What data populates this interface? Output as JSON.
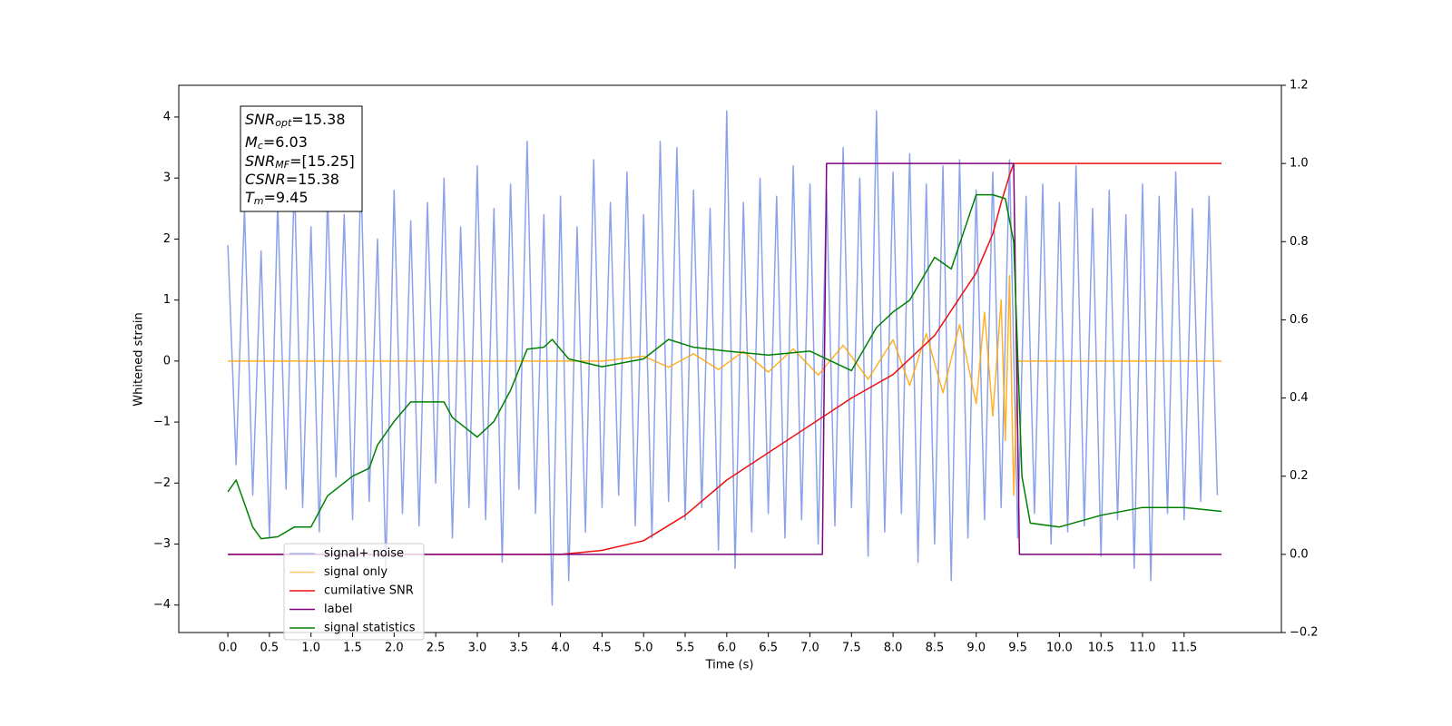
{
  "chart_data": {
    "type": "line",
    "xlabel": "Time (s)",
    "ylabel": "Whitened strain",
    "xlim": [
      -0.59,
      12.67
    ],
    "ylim": [
      -4.45,
      4.52
    ],
    "y2lim": [
      -0.2,
      1.2
    ],
    "xticks": [
      {
        "value": 0,
        "label": "0.0"
      },
      0.5,
      {
        "value": 1,
        "label": "1.0"
      },
      1.5,
      {
        "value": 2,
        "label": "2.0"
      },
      2.5,
      {
        "value": 3,
        "label": "3.0"
      },
      3.5,
      {
        "value": 4,
        "label": "4.0"
      },
      4.5,
      {
        "value": 5,
        "label": "5.0"
      },
      5.5,
      {
        "value": 6,
        "label": "6.0"
      },
      6.5,
      {
        "value": 7,
        "label": "7.0"
      },
      7.5,
      {
        "value": 8,
        "label": "8.0"
      },
      8.5,
      {
        "value": 9,
        "label": "9.0"
      },
      9.5,
      {
        "value": 10,
        "label": "10.0"
      },
      10.5,
      {
        "value": 11,
        "label": "11.0"
      },
      11.5
    ],
    "yticks": [
      {
        "value": -4,
        "label": "−4"
      },
      {
        "value": -3,
        "label": "−3"
      },
      {
        "value": -2,
        "label": "−2"
      },
      {
        "value": -1,
        "label": "−1"
      },
      0,
      1,
      2,
      3,
      4
    ],
    "y2ticks": [
      {
        "value": -0.2,
        "label": "−0.2"
      },
      {
        "value": 0,
        "label": "0.0"
      },
      0.2,
      0.4,
      0.6,
      0.8,
      {
        "value": 1,
        "label": "1.0"
      },
      1.2
    ],
    "legend": "lower left",
    "annotation": [
      {
        "main": "SNR",
        "sub": "opt",
        "rest": "=15.38"
      },
      {
        "main": "M",
        "sub": "c",
        "rest": "=6.03"
      },
      {
        "main": "SNR",
        "sub": "MF",
        "rest": "=[15.25]"
      },
      {
        "main": "CSNR",
        "rest": "=15.38"
      },
      {
        "main": "T",
        "sub": "m",
        "rest": "=9.45"
      }
    ],
    "series": [
      {
        "name": "signal+ noise",
        "color": "#7792e8",
        "axis": "y",
        "x": [
          0,
          0.1,
          0.2,
          0.3,
          0.4,
          0.5,
          0.6,
          0.7,
          0.8,
          0.9,
          1,
          1.1,
          1.2,
          1.3,
          1.4,
          1.5,
          1.6,
          1.7,
          1.8,
          1.9,
          2,
          2.1,
          2.2,
          2.3,
          2.4,
          2.5,
          2.6,
          2.7,
          2.8,
          2.9,
          3,
          3.1,
          3.2,
          3.3,
          3.4,
          3.5,
          3.6,
          3.7,
          3.8,
          3.9,
          4,
          4.1,
          4.2,
          4.3,
          4.4,
          4.5,
          4.6,
          4.7,
          4.8,
          4.9,
          5,
          5.1,
          5.2,
          5.3,
          5.4,
          5.5,
          5.6,
          5.7,
          5.8,
          5.9,
          6,
          6.1,
          6.2,
          6.3,
          6.4,
          6.5,
          6.6,
          6.7,
          6.8,
          6.9,
          7,
          7.1,
          7.2,
          7.3,
          7.4,
          7.5,
          7.6,
          7.7,
          7.8,
          7.9,
          8,
          8.1,
          8.2,
          8.3,
          8.4,
          8.5,
          8.6,
          8.7,
          8.8,
          8.9,
          9,
          9.1,
          9.2,
          9.3,
          9.4,
          9.5,
          9.6,
          9.7,
          9.8,
          9.9,
          10,
          10.1,
          10.2,
          10.3,
          10.4,
          10.5,
          10.6,
          10.7,
          10.8,
          10.9,
          11,
          11.1,
          11.2,
          11.3,
          11.4,
          11.5,
          11.6,
          11.7,
          11.8,
          11.9
        ],
        "values": [
          1.9,
          -1.7,
          2.5,
          -2.2,
          1.8,
          -2.9,
          2.6,
          -2.1,
          3.0,
          -2.4,
          2.2,
          -2.8,
          2.7,
          -1.9,
          2.4,
          -2.6,
          3.1,
          -2.3,
          2.0,
          -3.4,
          2.8,
          -2.5,
          2.3,
          -2.7,
          2.6,
          -2.0,
          3.0,
          -2.9,
          2.2,
          -2.4,
          3.2,
          -2.6,
          2.5,
          -3.3,
          2.9,
          -2.1,
          3.6,
          -2.5,
          2.4,
          -4.0,
          2.7,
          -3.6,
          2.2,
          -2.8,
          3.3,
          -2.4,
          2.6,
          -2.2,
          3.1,
          -2.7,
          2.4,
          -2.9,
          3.6,
          -2.3,
          3.5,
          -2.6,
          2.8,
          -2.4,
          2.5,
          -3.1,
          4.1,
          -3.4,
          2.6,
          -2.8,
          3.0,
          -2.5,
          2.7,
          -2.9,
          3.2,
          -2.6,
          2.9,
          -3.0,
          2.8,
          -2.7,
          3.5,
          -2.4,
          3.0,
          -3.2,
          4.1,
          -2.8,
          3.1,
          -2.5,
          3.4,
          -3.3,
          2.9,
          -3.0,
          3.2,
          -3.6,
          3.3,
          -2.9,
          2.8,
          -2.6,
          3.1,
          -2.4,
          3.3,
          -2.9,
          2.7,
          -2.5,
          2.9,
          -3.0,
          2.6,
          -2.8,
          3.2,
          -2.7,
          2.5,
          -3.2,
          2.8,
          -2.6,
          2.4,
          -3.4,
          2.9,
          -3.6,
          2.7,
          -2.5,
          3.1,
          -2.6,
          2.5,
          -2.3,
          2.7,
          -2.2
        ]
      },
      {
        "name": "signal only",
        "color": "#ffa500",
        "axis": "y",
        "x": [
          0,
          4.5,
          5.0,
          5.3,
          5.6,
          5.9,
          6.2,
          6.5,
          6.8,
          7.1,
          7.4,
          7.7,
          8.0,
          8.2,
          8.4,
          8.6,
          8.8,
          9.0,
          9.1,
          9.2,
          9.3,
          9.35,
          9.4,
          9.45,
          9.5,
          11.95
        ],
        "values": [
          0,
          0,
          0.08,
          -0.1,
          0.12,
          -0.14,
          0.16,
          -0.18,
          0.2,
          -0.23,
          0.26,
          -0.3,
          0.35,
          -0.4,
          0.45,
          -0.52,
          0.6,
          -0.7,
          0.8,
          -0.9,
          1.0,
          -1.3,
          1.4,
          -2.2,
          0,
          0
        ]
      },
      {
        "name": "cumilative SNR",
        "color": "#ee1111",
        "axis": "y2",
        "x": [
          0,
          4.0,
          4.5,
          5.0,
          5.5,
          6.0,
          6.5,
          7.0,
          7.5,
          8.0,
          8.5,
          9.0,
          9.2,
          9.3,
          9.4,
          9.45,
          11.95
        ],
        "values": [
          0,
          0,
          0.01,
          0.035,
          0.1,
          0.19,
          0.26,
          0.33,
          0.4,
          0.46,
          0.56,
          0.72,
          0.82,
          0.9,
          0.97,
          1.0,
          1.0
        ]
      },
      {
        "name": "label",
        "color": "#800080",
        "axis": "y2",
        "x": [
          0,
          7.15,
          7.2,
          9.45,
          9.52,
          11.95
        ],
        "values": [
          0,
          0,
          1,
          1,
          0,
          0
        ]
      },
      {
        "name": "signal statistics",
        "color": "#008000",
        "axis": "y2",
        "x": [
          0,
          0.1,
          0.2,
          0.3,
          0.4,
          0.6,
          0.8,
          1.0,
          1.2,
          1.5,
          1.7,
          1.8,
          2.0,
          2.2,
          2.4,
          2.6,
          2.7,
          3.0,
          3.2,
          3.4,
          3.6,
          3.8,
          3.9,
          4.1,
          4.5,
          5.0,
          5.3,
          5.6,
          6.0,
          6.5,
          7.0,
          7.5,
          7.8,
          8.0,
          8.2,
          8.5,
          8.7,
          9.0,
          9.2,
          9.35,
          9.45,
          9.55,
          9.65,
          10.0,
          10.5,
          11.0,
          11.5,
          11.95
        ],
        "values": [
          0.16,
          0.19,
          0.13,
          0.07,
          0.04,
          0.045,
          0.07,
          0.07,
          0.15,
          0.2,
          0.22,
          0.28,
          0.34,
          0.39,
          0.39,
          0.39,
          0.35,
          0.3,
          0.34,
          0.42,
          0.525,
          0.53,
          0.55,
          0.5,
          0.48,
          0.5,
          0.55,
          0.53,
          0.52,
          0.51,
          0.52,
          0.47,
          0.58,
          0.62,
          0.65,
          0.76,
          0.73,
          0.92,
          0.92,
          0.91,
          0.8,
          0.2,
          0.08,
          0.07,
          0.1,
          0.12,
          0.12,
          0.11
        ]
      }
    ]
  }
}
